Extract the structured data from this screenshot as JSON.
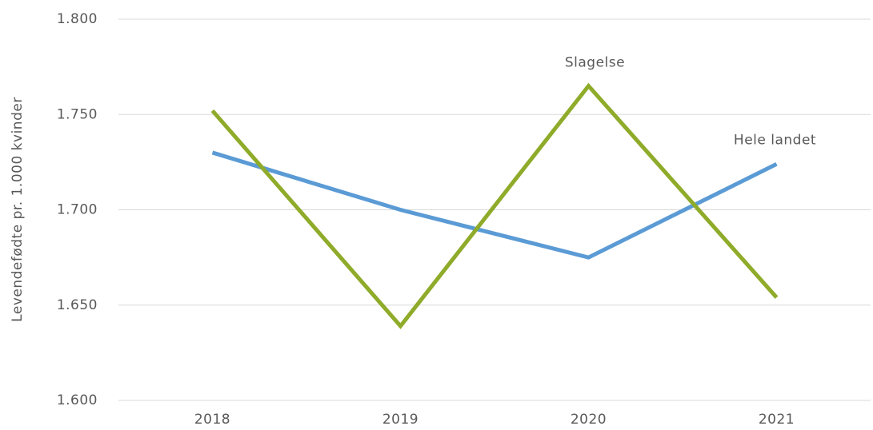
{
  "chart_data": {
    "type": "line",
    "y_label": "Levendefødte pr. 1.000 kvinder",
    "categories": [
      "2018",
      "2019",
      "2020",
      "2021"
    ],
    "series": [
      {
        "name": "Hele landet",
        "color": "#5b9bd5",
        "values": [
          1730,
          1700,
          1675,
          1724
        ]
      },
      {
        "name": "Slagelse",
        "color": "#8fab2a",
        "values": [
          1752,
          1639,
          1765,
          1654
        ]
      }
    ],
    "ylim": [
      1600,
      1800
    ],
    "yticks": [
      {
        "value": 1600,
        "label": "1.600"
      },
      {
        "value": 1650,
        "label": "1.650"
      },
      {
        "value": 1700,
        "label": "1.700"
      },
      {
        "value": 1750,
        "label": "1.750"
      },
      {
        "value": 1800,
        "label": "1.800"
      }
    ],
    "grid": true
  }
}
